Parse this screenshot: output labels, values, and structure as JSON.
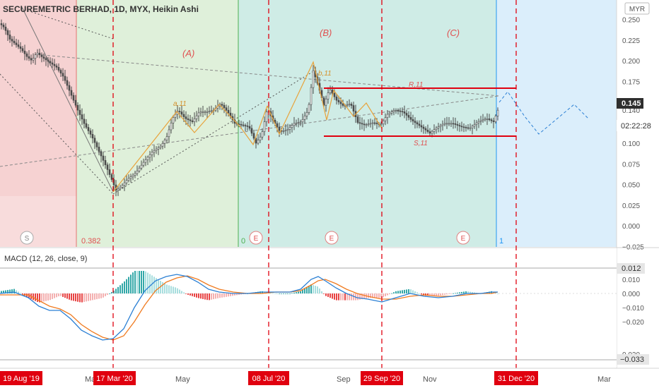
{
  "header": {
    "symbol_title": "SECUREMETRIC BERHAD, 1D, MYX, Heikin Ashi",
    "currency": "MYR"
  },
  "price_axis": {
    "ticks": [
      "0.250",
      "0.225",
      "0.200",
      "0.175",
      "0.150",
      "0.125",
      "0.100",
      "0.075",
      "0.050",
      "0.025",
      "0.000",
      "−0.025"
    ],
    "last_price": "0.145",
    "price_near": "0.140",
    "countdown": "02:22:28"
  },
  "macd": {
    "title": "MACD (12, 26, close, 9)",
    "ticks": [
      "0.020",
      "0.010",
      "0.000",
      "−0.010",
      "−0.020"
    ],
    "upper_tag": "0.012",
    "lower_tag": "−0.033",
    "partial_tick": "0.020"
  },
  "time_axis": {
    "labels": [
      "Mar",
      "May",
      "Sep",
      "Nov",
      "Mar"
    ],
    "date_tags": [
      "19 Aug '19",
      "17 Mar '20",
      "08 Jul '20",
      "29 Sep '20",
      "31 Dec '20"
    ]
  },
  "annotations": {
    "wave_A": "(A)",
    "wave_B": "(B)",
    "wave_C": "(C)",
    "a_label": "a,11",
    "b_label": "b,11",
    "r_label": "R,11",
    "s_label": "S,11",
    "fib_382": "0.382",
    "fib_0": "0",
    "s_marker": "S",
    "e_marker": "E",
    "count_1": "1"
  },
  "colors": {
    "zone_red": "#f6d2d2",
    "zone_green": "#dff0da",
    "zone_teal": "#cfece6",
    "zone_blue": "#dbeefb",
    "tag_red": "#e0000f",
    "candle_grey": "#4a4a4a",
    "fib_orange": "#e8a33c",
    "macd_blue": "#2a7fd4",
    "macd_orange": "#f07b20",
    "hist_teal": "#33a8a8",
    "hist_red": "#e84444"
  },
  "chart_data": {
    "type": "candlestick",
    "title": "SECUREMETRIC BERHAD, 1D, MYX, Heikin Ashi",
    "ylim": [
      -0.025,
      0.255
    ],
    "price_path": [
      [
        0,
        0.245
      ],
      [
        6,
        0.24
      ],
      [
        14,
        0.226
      ],
      [
        22,
        0.22
      ],
      [
        30,
        0.214
      ],
      [
        38,
        0.205
      ],
      [
        45,
        0.2
      ],
      [
        52,
        0.21
      ],
      [
        60,
        0.204
      ],
      [
        70,
        0.198
      ],
      [
        80,
        0.192
      ],
      [
        90,
        0.18
      ],
      [
        100,
        0.16
      ],
      [
        110,
        0.14
      ],
      [
        120,
        0.122
      ],
      [
        130,
        0.108
      ],
      [
        140,
        0.09
      ],
      [
        150,
        0.072
      ],
      [
        158,
        0.056
      ],
      [
        164,
        0.043
      ],
      [
        172,
        0.048
      ],
      [
        180,
        0.056
      ],
      [
        192,
        0.064
      ],
      [
        204,
        0.078
      ],
      [
        216,
        0.09
      ],
      [
        228,
        0.097
      ],
      [
        236,
        0.108
      ],
      [
        244,
        0.13
      ],
      [
        252,
        0.14
      ],
      [
        262,
        0.13
      ],
      [
        272,
        0.126
      ],
      [
        282,
        0.138
      ],
      [
        292,
        0.138
      ],
      [
        302,
        0.14
      ],
      [
        312,
        0.148
      ],
      [
        322,
        0.138
      ],
      [
        332,
        0.124
      ],
      [
        342,
        0.122
      ],
      [
        352,
        0.12
      ],
      [
        362,
        0.1
      ],
      [
        370,
        0.11
      ],
      [
        378,
        0.142
      ],
      [
        386,
        0.128
      ],
      [
        396,
        0.114
      ],
      [
        406,
        0.116
      ],
      [
        416,
        0.124
      ],
      [
        426,
        0.126
      ],
      [
        436,
        0.14
      ],
      [
        443,
        0.188
      ],
      [
        450,
        0.17
      ],
      [
        458,
        0.146
      ],
      [
        466,
        0.166
      ],
      [
        476,
        0.152
      ],
      [
        486,
        0.145
      ],
      [
        496,
        0.148
      ],
      [
        506,
        0.125
      ],
      [
        516,
        0.122
      ],
      [
        528,
        0.125
      ],
      [
        538,
        0.122
      ],
      [
        548,
        0.135
      ],
      [
        558,
        0.14
      ],
      [
        570,
        0.138
      ],
      [
        582,
        0.128
      ],
      [
        592,
        0.122
      ],
      [
        602,
        0.116
      ],
      [
        608,
        0.112
      ],
      [
        616,
        0.118
      ],
      [
        628,
        0.124
      ],
      [
        640,
        0.124
      ],
      [
        652,
        0.12
      ],
      [
        664,
        0.118
      ],
      [
        676,
        0.126
      ],
      [
        688,
        0.13
      ],
      [
        698,
        0.126
      ],
      [
        704,
        0.14
      ]
    ],
    "macd_line": [
      [
        0,
        0.0
      ],
      [
        20,
        0.001
      ],
      [
        40,
        -0.003
      ],
      [
        55,
        -0.009
      ],
      [
        70,
        -0.012
      ],
      [
        85,
        -0.012
      ],
      [
        100,
        -0.018
      ],
      [
        115,
        -0.026
      ],
      [
        130,
        -0.03
      ],
      [
        145,
        -0.033
      ],
      [
        160,
        -0.032
      ],
      [
        175,
        -0.025
      ],
      [
        190,
        -0.01
      ],
      [
        205,
        0.002
      ],
      [
        220,
        0.009
      ],
      [
        235,
        0.012
      ],
      [
        250,
        0.0135
      ],
      [
        265,
        0.012
      ],
      [
        280,
        0.008
      ],
      [
        295,
        0.003
      ],
      [
        310,
        0.001
      ],
      [
        330,
        0.0
      ],
      [
        350,
        0.0
      ],
      [
        370,
        0.001
      ],
      [
        390,
        0.001
      ],
      [
        410,
        0.001
      ],
      [
        425,
        0.003
      ],
      [
        440,
        0.01
      ],
      [
        450,
        0.012
      ],
      [
        460,
        0.009
      ],
      [
        475,
        0.004
      ],
      [
        490,
        0.0
      ],
      [
        505,
        -0.003
      ],
      [
        520,
        -0.004
      ],
      [
        540,
        -0.006
      ],
      [
        560,
        -0.003
      ],
      [
        580,
        0.0
      ],
      [
        600,
        -0.002
      ],
      [
        620,
        -0.003
      ],
      [
        640,
        -0.002
      ],
      [
        660,
        0.0
      ],
      [
        680,
        0.0
      ],
      [
        695,
        0.001
      ],
      [
        704,
        0.001
      ]
    ],
    "signal_line": [
      [
        0,
        -0.001
      ],
      [
        20,
        -0.001
      ],
      [
        40,
        -0.001
      ],
      [
        55,
        -0.005
      ],
      [
        70,
        -0.009
      ],
      [
        85,
        -0.011
      ],
      [
        100,
        -0.015
      ],
      [
        115,
        -0.022
      ],
      [
        130,
        -0.027
      ],
      [
        145,
        -0.031
      ],
      [
        160,
        -0.033
      ],
      [
        175,
        -0.03
      ],
      [
        190,
        -0.02
      ],
      [
        205,
        -0.008
      ],
      [
        220,
        0.002
      ],
      [
        235,
        0.008
      ],
      [
        250,
        0.011
      ],
      [
        265,
        0.0125
      ],
      [
        280,
        0.01
      ],
      [
        295,
        0.006
      ],
      [
        310,
        0.003
      ],
      [
        330,
        0.001
      ],
      [
        350,
        0.0
      ],
      [
        370,
        0.0
      ],
      [
        390,
        0.001
      ],
      [
        410,
        0.001
      ],
      [
        425,
        0.002
      ],
      [
        440,
        0.006
      ],
      [
        450,
        0.009
      ],
      [
        460,
        0.01
      ],
      [
        475,
        0.007
      ],
      [
        490,
        0.003
      ],
      [
        505,
        0.0
      ],
      [
        520,
        -0.002
      ],
      [
        540,
        -0.004
      ],
      [
        560,
        -0.004
      ],
      [
        580,
        -0.002
      ],
      [
        600,
        -0.001
      ],
      [
        620,
        -0.002
      ],
      [
        640,
        -0.002
      ],
      [
        660,
        -0.001
      ],
      [
        680,
        0.0
      ],
      [
        695,
        0.0
      ],
      [
        704,
        0.001
      ]
    ]
  }
}
